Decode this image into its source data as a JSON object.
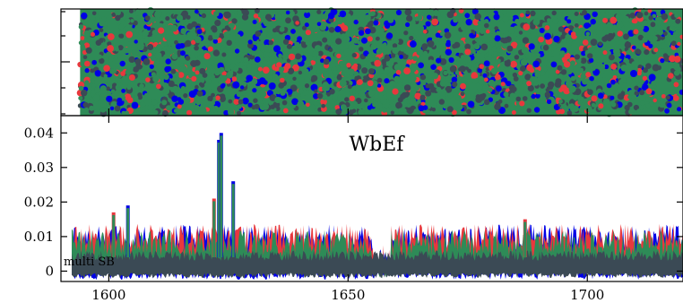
{
  "chart_data": [
    {
      "type": "scatter",
      "panel": "top",
      "title": "",
      "xlabel": "",
      "ylabel": "",
      "xlim": [
        1590,
        1720
      ],
      "x_data_start": 1594,
      "grid": false,
      "yticklabels": false,
      "series": [
        {
          "color": "#e8383d"
        },
        {
          "color": "#0000e6"
        },
        {
          "color": "#3b4a55"
        },
        {
          "color": "#2e8b57"
        }
      ]
    },
    {
      "type": "area",
      "panel": "bottom",
      "title": "WbEf",
      "annotation": "multi SB",
      "xlabel": "",
      "ylabel": "",
      "xlim": [
        1590,
        1720
      ],
      "ylim": [
        -0.003,
        0.045
      ],
      "xticks": [
        1600,
        1650,
        1700
      ],
      "yticks": [
        0,
        0.01,
        0.02,
        0.03,
        0.04
      ],
      "ytick_labels": [
        "0",
        "0.01",
        "0.02",
        "0.03",
        "0.04"
      ],
      "grid": false,
      "baseline_level": 0.008,
      "spikes": [
        {
          "x": 1601,
          "y": 0.017
        },
        {
          "x": 1604,
          "y": 0.019
        },
        {
          "x": 1622,
          "y": 0.021
        },
        {
          "x": 1623,
          "y": 0.038
        },
        {
          "x": 1623.5,
          "y": 0.04
        },
        {
          "x": 1626,
          "y": 0.026
        },
        {
          "x": 1687,
          "y": 0.015
        }
      ],
      "series": [
        {
          "color": "#e8383d"
        },
        {
          "color": "#0000e6"
        },
        {
          "color": "#2e8b57"
        },
        {
          "color": "#3b4a55"
        }
      ]
    }
  ]
}
